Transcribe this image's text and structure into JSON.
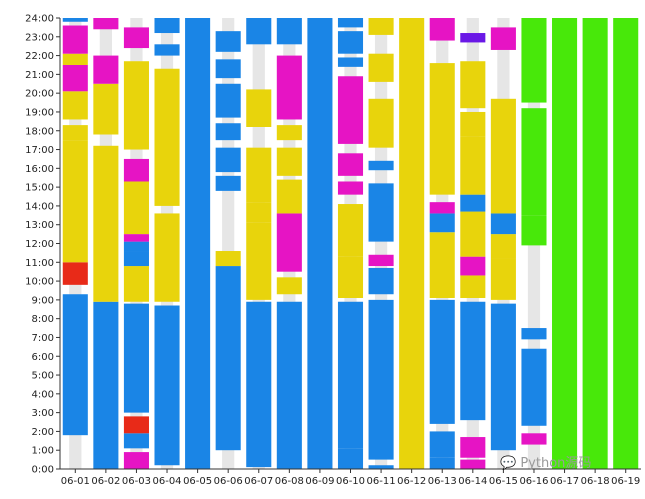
{
  "chart_data": {
    "type": "bar",
    "title": "",
    "xlabel": "",
    "ylabel": "",
    "ylim": [
      0,
      24
    ],
    "grid": false,
    "legend": "none",
    "y_ticks": [
      "0:00",
      "1:00",
      "2:00",
      "3:00",
      "4:00",
      "5:00",
      "6:00",
      "7:00",
      "8:00",
      "9:00",
      "10:00",
      "11:00",
      "12:00",
      "13:00",
      "14:00",
      "15:00",
      "16:00",
      "17:00",
      "18:00",
      "19:00",
      "20:00",
      "21:00",
      "22:00",
      "23:00",
      "24:00"
    ],
    "categories": [
      "06-01",
      "06-02",
      "06-03",
      "06-04",
      "06-05",
      "06-06",
      "06-07",
      "06-08",
      "06-09",
      "06-10",
      "06-11",
      "06-12",
      "06-13",
      "06-14",
      "06-15",
      "06-16",
      "06-17",
      "06-18",
      "06-19"
    ],
    "colors": {
      "blue": "#1a85e6",
      "yellow": "#e8d40c",
      "magenta": "#e614c4",
      "red": "#e82a18",
      "purple": "#6a18e6",
      "green": "#48e80a",
      "track": "#e6e6e6"
    },
    "series": [
      {
        "category": "06-01",
        "segments": [
          {
            "start": 1.8,
            "end": 9.3,
            "color": "blue"
          },
          {
            "start": 9.8,
            "end": 11.0,
            "color": "red"
          },
          {
            "start": 11.0,
            "end": 17.5,
            "color": "yellow"
          },
          {
            "start": 17.5,
            "end": 18.3,
            "color": "yellow"
          },
          {
            "start": 18.6,
            "end": 20.1,
            "color": "yellow"
          },
          {
            "start": 20.1,
            "end": 21.5,
            "color": "magenta"
          },
          {
            "start": 21.5,
            "end": 22.1,
            "color": "yellow"
          },
          {
            "start": 22.1,
            "end": 23.6,
            "color": "magenta"
          },
          {
            "start": 23.8,
            "end": 24.0,
            "color": "blue"
          }
        ]
      },
      {
        "category": "06-02",
        "segments": [
          {
            "start": 0.0,
            "end": 8.9,
            "color": "blue"
          },
          {
            "start": 8.9,
            "end": 17.2,
            "color": "yellow"
          },
          {
            "start": 17.8,
            "end": 20.5,
            "color": "yellow"
          },
          {
            "start": 20.5,
            "end": 22.0,
            "color": "magenta"
          },
          {
            "start": 23.4,
            "end": 24.0,
            "color": "magenta"
          }
        ]
      },
      {
        "category": "06-03",
        "segments": [
          {
            "start": 0.0,
            "end": 0.9,
            "color": "magenta"
          },
          {
            "start": 1.1,
            "end": 1.9,
            "color": "blue"
          },
          {
            "start": 1.9,
            "end": 2.8,
            "color": "red"
          },
          {
            "start": 3.0,
            "end": 8.8,
            "color": "blue"
          },
          {
            "start": 8.9,
            "end": 10.8,
            "color": "yellow"
          },
          {
            "start": 10.8,
            "end": 11.6,
            "color": "blue"
          },
          {
            "start": 11.6,
            "end": 12.1,
            "color": "blue"
          },
          {
            "start": 12.1,
            "end": 12.5,
            "color": "magenta"
          },
          {
            "start": 12.5,
            "end": 15.3,
            "color": "yellow"
          },
          {
            "start": 15.3,
            "end": 16.5,
            "color": "magenta"
          },
          {
            "start": 17.0,
            "end": 21.7,
            "color": "yellow"
          },
          {
            "start": 22.4,
            "end": 23.5,
            "color": "magenta"
          }
        ]
      },
      {
        "category": "06-04",
        "segments": [
          {
            "start": 0.2,
            "end": 8.7,
            "color": "blue"
          },
          {
            "start": 8.9,
            "end": 13.6,
            "color": "yellow"
          },
          {
            "start": 14.0,
            "end": 21.3,
            "color": "yellow"
          },
          {
            "start": 22.0,
            "end": 22.6,
            "color": "blue"
          },
          {
            "start": 23.2,
            "end": 24.0,
            "color": "blue"
          }
        ]
      },
      {
        "category": "06-05",
        "segments": [
          {
            "start": 0.0,
            "end": 24.0,
            "color": "blue"
          }
        ]
      },
      {
        "category": "06-06",
        "segments": [
          {
            "start": 1.0,
            "end": 10.8,
            "color": "blue"
          },
          {
            "start": 10.8,
            "end": 11.6,
            "color": "yellow"
          },
          {
            "start": 14.8,
            "end": 15.6,
            "color": "blue"
          },
          {
            "start": 15.8,
            "end": 17.1,
            "color": "blue"
          },
          {
            "start": 17.5,
            "end": 18.4,
            "color": "blue"
          },
          {
            "start": 18.7,
            "end": 20.5,
            "color": "blue"
          },
          {
            "start": 20.8,
            "end": 21.8,
            "color": "blue"
          },
          {
            "start": 22.2,
            "end": 23.3,
            "color": "blue"
          }
        ]
      },
      {
        "category": "06-07",
        "segments": [
          {
            "start": 0.1,
            "end": 8.9,
            "color": "blue"
          },
          {
            "start": 9.0,
            "end": 13.1,
            "color": "yellow"
          },
          {
            "start": 13.1,
            "end": 14.2,
            "color": "yellow"
          },
          {
            "start": 14.2,
            "end": 17.1,
            "color": "yellow"
          },
          {
            "start": 18.2,
            "end": 20.2,
            "color": "yellow"
          },
          {
            "start": 22.6,
            "end": 24.0,
            "color": "blue"
          }
        ]
      },
      {
        "category": "06-08",
        "segments": [
          {
            "start": 0.0,
            "end": 8.9,
            "color": "blue"
          },
          {
            "start": 9.3,
            "end": 10.2,
            "color": "yellow"
          },
          {
            "start": 10.5,
            "end": 13.6,
            "color": "magenta"
          },
          {
            "start": 13.6,
            "end": 15.4,
            "color": "yellow"
          },
          {
            "start": 15.6,
            "end": 17.1,
            "color": "yellow"
          },
          {
            "start": 17.5,
            "end": 18.3,
            "color": "yellow"
          },
          {
            "start": 18.6,
            "end": 22.0,
            "color": "magenta"
          },
          {
            "start": 22.6,
            "end": 24.0,
            "color": "blue"
          }
        ]
      },
      {
        "category": "06-09",
        "segments": [
          {
            "start": 0.0,
            "end": 24.0,
            "color": "blue"
          }
        ]
      },
      {
        "category": "06-10",
        "segments": [
          {
            "start": 0.0,
            "end": 1.1,
            "color": "blue"
          },
          {
            "start": 1.1,
            "end": 8.9,
            "color": "blue"
          },
          {
            "start": 9.1,
            "end": 11.3,
            "color": "yellow"
          },
          {
            "start": 11.3,
            "end": 14.1,
            "color": "yellow"
          },
          {
            "start": 14.6,
            "end": 15.3,
            "color": "magenta"
          },
          {
            "start": 15.6,
            "end": 16.8,
            "color": "magenta"
          },
          {
            "start": 17.3,
            "end": 20.9,
            "color": "magenta"
          },
          {
            "start": 21.4,
            "end": 21.9,
            "color": "blue"
          },
          {
            "start": 22.1,
            "end": 23.3,
            "color": "blue"
          },
          {
            "start": 23.5,
            "end": 24.0,
            "color": "blue"
          }
        ]
      },
      {
        "category": "06-11",
        "segments": [
          {
            "start": 0.0,
            "end": 0.2,
            "color": "blue"
          },
          {
            "start": 0.5,
            "end": 9.0,
            "color": "blue"
          },
          {
            "start": 9.3,
            "end": 10.7,
            "color": "blue"
          },
          {
            "start": 10.8,
            "end": 11.4,
            "color": "magenta"
          },
          {
            "start": 12.1,
            "end": 15.2,
            "color": "blue"
          },
          {
            "start": 15.9,
            "end": 16.4,
            "color": "blue"
          },
          {
            "start": 17.1,
            "end": 19.7,
            "color": "yellow"
          },
          {
            "start": 20.6,
            "end": 22.1,
            "color": "yellow"
          },
          {
            "start": 23.1,
            "end": 24.0,
            "color": "yellow"
          }
        ]
      },
      {
        "category": "06-12",
        "segments": [
          {
            "start": 0.0,
            "end": 24.0,
            "color": "yellow"
          }
        ]
      },
      {
        "category": "06-13",
        "segments": [
          {
            "start": 0.0,
            "end": 0.6,
            "color": "blue"
          },
          {
            "start": 0.6,
            "end": 2.0,
            "color": "blue"
          },
          {
            "start": 2.4,
            "end": 9.0,
            "color": "blue"
          },
          {
            "start": 9.1,
            "end": 12.6,
            "color": "yellow"
          },
          {
            "start": 12.6,
            "end": 13.6,
            "color": "blue"
          },
          {
            "start": 13.6,
            "end": 14.2,
            "color": "magenta"
          },
          {
            "start": 14.6,
            "end": 21.6,
            "color": "yellow"
          },
          {
            "start": 22.8,
            "end": 24.0,
            "color": "magenta"
          }
        ]
      },
      {
        "category": "06-14",
        "segments": [
          {
            "start": 0.0,
            "end": 0.5,
            "color": "magenta"
          },
          {
            "start": 0.6,
            "end": 1.7,
            "color": "magenta"
          },
          {
            "start": 2.6,
            "end": 8.9,
            "color": "blue"
          },
          {
            "start": 9.1,
            "end": 10.3,
            "color": "yellow"
          },
          {
            "start": 10.3,
            "end": 11.3,
            "color": "magenta"
          },
          {
            "start": 11.3,
            "end": 13.7,
            "color": "yellow"
          },
          {
            "start": 13.7,
            "end": 14.6,
            "color": "blue"
          },
          {
            "start": 14.6,
            "end": 17.7,
            "color": "yellow"
          },
          {
            "start": 17.7,
            "end": 19.0,
            "color": "yellow"
          },
          {
            "start": 19.2,
            "end": 21.7,
            "color": "yellow"
          },
          {
            "start": 22.7,
            "end": 23.2,
            "color": "purple"
          }
        ]
      },
      {
        "category": "06-15",
        "segments": [
          {
            "start": 1.0,
            "end": 8.8,
            "color": "blue"
          },
          {
            "start": 9.0,
            "end": 11.2,
            "color": "yellow"
          },
          {
            "start": 11.2,
            "end": 12.5,
            "color": "yellow"
          },
          {
            "start": 12.5,
            "end": 13.6,
            "color": "blue"
          },
          {
            "start": 13.6,
            "end": 19.7,
            "color": "yellow"
          },
          {
            "start": 22.3,
            "end": 23.5,
            "color": "magenta"
          }
        ]
      },
      {
        "category": "06-16",
        "segments": [
          {
            "start": 1.3,
            "end": 1.9,
            "color": "magenta"
          },
          {
            "start": 2.3,
            "end": 6.4,
            "color": "blue"
          },
          {
            "start": 6.9,
            "end": 7.5,
            "color": "blue"
          },
          {
            "start": 11.9,
            "end": 13.5,
            "color": "green"
          },
          {
            "start": 13.5,
            "end": 19.2,
            "color": "green"
          },
          {
            "start": 19.5,
            "end": 24.0,
            "color": "green"
          }
        ]
      },
      {
        "category": "06-17",
        "segments": [
          {
            "start": 0.0,
            "end": 24.0,
            "color": "green"
          }
        ]
      },
      {
        "category": "06-18",
        "segments": [
          {
            "start": 0.0,
            "end": 24.0,
            "color": "green"
          }
        ]
      },
      {
        "category": "06-19",
        "segments": [
          {
            "start": 0.0,
            "end": 24.0,
            "color": "green"
          }
        ]
      }
    ]
  },
  "watermark": {
    "text": "Python源码"
  }
}
